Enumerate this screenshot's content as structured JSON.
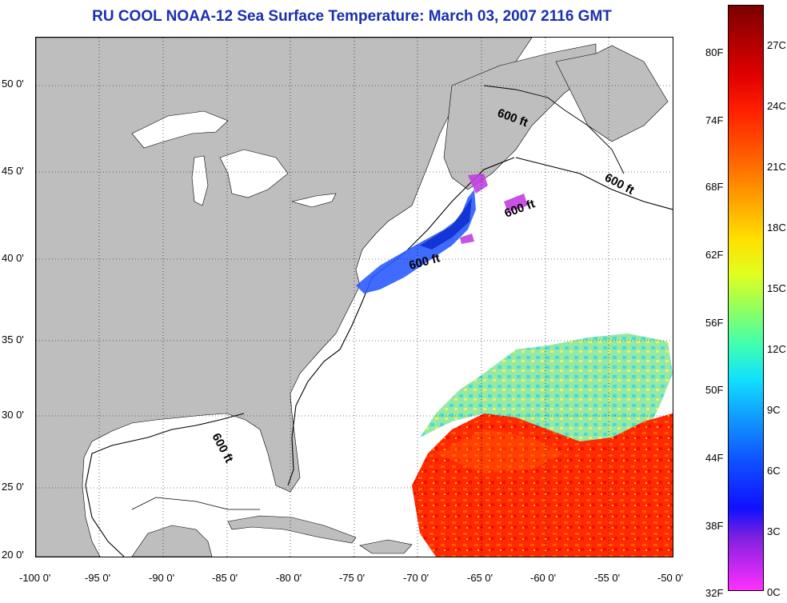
{
  "title": "RU COOL  NOAA-12  Sea Surface Temperature:  March 03, 2007 2116 GMT",
  "axes": {
    "latitude_ticks": [
      "50 0'",
      "45 0'",
      "40 0'",
      "35 0'",
      "30 0'",
      "25 0'",
      "20 0'"
    ],
    "longitude_ticks": [
      "-100 0'",
      "-95 0'",
      "-90 0'",
      "-85 0'",
      "-80 0'",
      "-75 0'",
      "-70 0'",
      "-65 0'",
      "-60 0'",
      "-55 0'",
      "-50 0'"
    ]
  },
  "contours": {
    "label_1": "600 ft",
    "label_2": "600 ft",
    "label_3": "600 ft",
    "label_4": "600 ft",
    "label_5": "600 ft"
  },
  "colorbar": {
    "fahrenheit_labels": [
      "80F",
      "74F",
      "68F",
      "62F",
      "56F",
      "50F",
      "44F",
      "38F",
      "32F"
    ],
    "celsius_labels": [
      "27C",
      "24C",
      "21C",
      "18C",
      "15C",
      "12C",
      "9C",
      "6C",
      "3C",
      "0C"
    ]
  },
  "colors": {
    "title": "#1a2fb0",
    "land": "#bebebe",
    "ocean_no_data": "#ffffff",
    "warm": "#ff2000",
    "cold": "#2040ff"
  }
}
